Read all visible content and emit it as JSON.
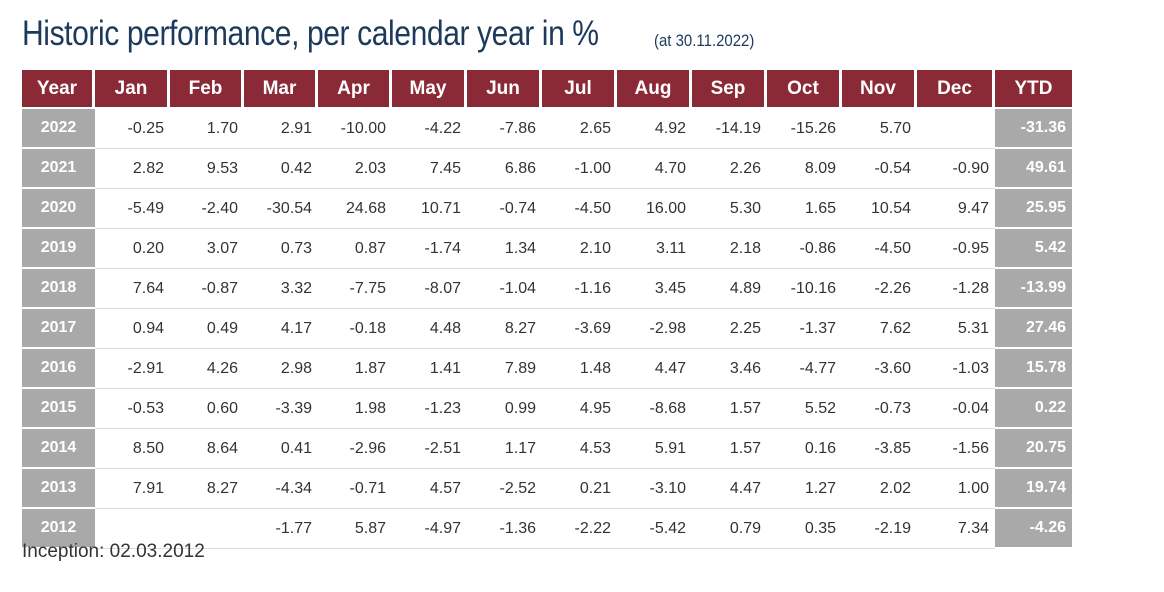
{
  "title": "Historic performance, per calendar year in %",
  "as_of": "(at 30.11.2022)",
  "footer": "Inception: 02.03.2012",
  "colors": {
    "header": "#8b2a37",
    "side": "#a9a9a9",
    "title": "#1d3a5c"
  },
  "chart_data": {
    "type": "table",
    "title": "Historic performance, per calendar year in %",
    "columns": [
      "Year",
      "Jan",
      "Feb",
      "Mar",
      "Apr",
      "May",
      "Jun",
      "Jul",
      "Aug",
      "Sep",
      "Oct",
      "Nov",
      "Dec",
      "YTD"
    ],
    "rows": [
      [
        "2022",
        "-0.25",
        "1.70",
        "2.91",
        "-10.00",
        "-4.22",
        "-7.86",
        "2.65",
        "4.92",
        "-14.19",
        "-15.26",
        "5.70",
        "",
        "-31.36"
      ],
      [
        "2021",
        "2.82",
        "9.53",
        "0.42",
        "2.03",
        "7.45",
        "6.86",
        "-1.00",
        "4.70",
        "2.26",
        "8.09",
        "-0.54",
        "-0.90",
        "49.61"
      ],
      [
        "2020",
        "-5.49",
        "-2.40",
        "-30.54",
        "24.68",
        "10.71",
        "-0.74",
        "-4.50",
        "16.00",
        "5.30",
        "1.65",
        "10.54",
        "9.47",
        "25.95"
      ],
      [
        "2019",
        "0.20",
        "3.07",
        "0.73",
        "0.87",
        "-1.74",
        "1.34",
        "2.10",
        "3.11",
        "2.18",
        "-0.86",
        "-4.50",
        "-0.95",
        "5.42"
      ],
      [
        "2018",
        "7.64",
        "-0.87",
        "3.32",
        "-7.75",
        "-8.07",
        "-1.04",
        "-1.16",
        "3.45",
        "4.89",
        "-10.16",
        "-2.26",
        "-1.28",
        "-13.99"
      ],
      [
        "2017",
        "0.94",
        "0.49",
        "4.17",
        "-0.18",
        "4.48",
        "8.27",
        "-3.69",
        "-2.98",
        "2.25",
        "-1.37",
        "7.62",
        "5.31",
        "27.46"
      ],
      [
        "2016",
        "-2.91",
        "4.26",
        "2.98",
        "1.87",
        "1.41",
        "7.89",
        "1.48",
        "4.47",
        "3.46",
        "-4.77",
        "-3.60",
        "-1.03",
        "15.78"
      ],
      [
        "2015",
        "-0.53",
        "0.60",
        "-3.39",
        "1.98",
        "-1.23",
        "0.99",
        "4.95",
        "-8.68",
        "1.57",
        "5.52",
        "-0.73",
        "-0.04",
        "0.22"
      ],
      [
        "2014",
        "8.50",
        "8.64",
        "0.41",
        "-2.96",
        "-2.51",
        "1.17",
        "4.53",
        "5.91",
        "1.57",
        "0.16",
        "-3.85",
        "-1.56",
        "20.75"
      ],
      [
        "2013",
        "7.91",
        "8.27",
        "-4.34",
        "-0.71",
        "4.57",
        "-2.52",
        "0.21",
        "-3.10",
        "4.47",
        "1.27",
        "2.02",
        "1.00",
        "19.74"
      ],
      [
        "2012",
        "",
        "",
        "-1.77",
        "5.87",
        "-4.97",
        "-1.36",
        "-2.22",
        "-5.42",
        "0.79",
        "0.35",
        "-2.19",
        "7.34",
        "-4.26"
      ]
    ]
  }
}
